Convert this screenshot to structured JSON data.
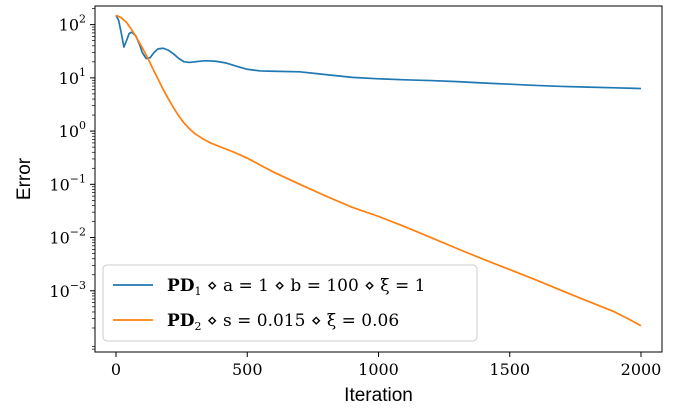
{
  "chart_data": {
    "type": "line",
    "xlabel": "Iteration",
    "ylabel": "Error",
    "xlim": [
      -80,
      2080
    ],
    "ylim_log10": [
      -4.15,
      2.35
    ],
    "yscale": "log",
    "grid": false,
    "legend_placement": "lower-left",
    "x_ticks": [
      {
        "value": 0,
        "label": "0"
      },
      {
        "value": 500,
        "label": "500"
      },
      {
        "value": 1000,
        "label": "1000"
      },
      {
        "value": 1500,
        "label": "1500"
      },
      {
        "value": 2000,
        "label": "2000"
      }
    ],
    "y_ticks": [
      {
        "exp": 2,
        "base": "10",
        "label": "2"
      },
      {
        "exp": 1,
        "base": "10",
        "label": "1"
      },
      {
        "exp": 0,
        "base": "10",
        "label": "0"
      },
      {
        "exp": -1,
        "base": "10",
        "label": "−1"
      },
      {
        "exp": -2,
        "base": "10",
        "label": "−2"
      },
      {
        "exp": -3,
        "base": "10",
        "label": "−3"
      }
    ],
    "series": [
      {
        "name": "PD1 ◇ a = 1 ◇ b = 100 ◇ ξ = 1",
        "legend": {
          "bold": "PD",
          "sub": "1",
          "rest": " ⋄ a = 1 ⋄ b = 100 ⋄ ξ = 1"
        },
        "color": "#1f77b4",
        "x": [
          0,
          10,
          20,
          30,
          40,
          50,
          60,
          75,
          90,
          100,
          115,
          130,
          145,
          160,
          180,
          200,
          220,
          240,
          260,
          280,
          300,
          340,
          380,
          420,
          460,
          500,
          550,
          600,
          700,
          800,
          900,
          1000,
          1100,
          1200,
          1300,
          1400,
          1500,
          1600,
          1700,
          1800,
          1900,
          2000
        ],
        "y": [
          150,
          120,
          70,
          38,
          50,
          68,
          72,
          62,
          42,
          30,
          23,
          24,
          30,
          35,
          36,
          33,
          28,
          23,
          20,
          19.5,
          20,
          21,
          20.5,
          19,
          16.5,
          14.5,
          13.5,
          13.3,
          13,
          11.5,
          10.2,
          9.6,
          9.2,
          8.9,
          8.5,
          8.0,
          7.6,
          7.2,
          6.9,
          6.7,
          6.5,
          6.3
        ]
      },
      {
        "name": "PD2 ◇ s = 0.015 ◇ ξ = 0.06",
        "legend": {
          "bold": "PD",
          "sub": "2",
          "rest": " ⋄ s = 0.015 ⋄ ξ = 0.06"
        },
        "color": "#ff7f0e",
        "x": [
          0,
          20,
          40,
          60,
          80,
          100,
          120,
          140,
          160,
          180,
          200,
          220,
          240,
          260,
          280,
          300,
          330,
          360,
          400,
          450,
          500,
          550,
          600,
          700,
          800,
          900,
          1000,
          1100,
          1200,
          1300,
          1400,
          1500,
          1600,
          1700,
          1800,
          1900,
          1950,
          2000
        ],
        "y": [
          150,
          135,
          110,
          80,
          55,
          37,
          24,
          15,
          9.5,
          6.0,
          4.0,
          2.7,
          1.9,
          1.4,
          1.1,
          0.9,
          0.72,
          0.6,
          0.5,
          0.4,
          0.31,
          0.23,
          0.17,
          0.1,
          0.06,
          0.037,
          0.025,
          0.016,
          0.01,
          0.0062,
          0.0039,
          0.0025,
          0.0016,
          0.001,
          0.00063,
          0.0004,
          0.0003,
          0.00022
        ]
      }
    ]
  }
}
